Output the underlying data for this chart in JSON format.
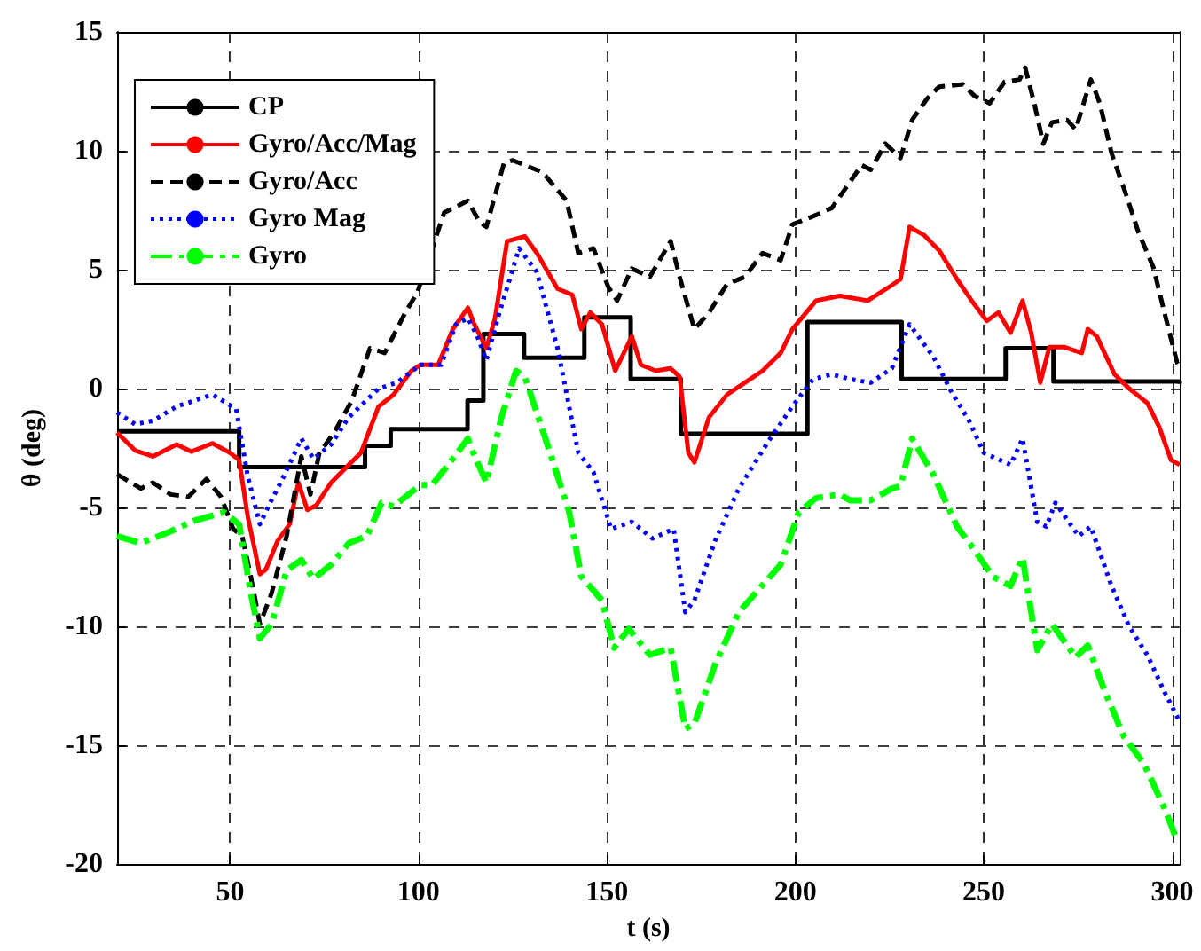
{
  "chart_data": {
    "type": "line",
    "xlabel": "t (s)",
    "ylabel": "θ (deg)",
    "xlim": [
      20,
      302
    ],
    "xticks": [
      50,
      100,
      150,
      200,
      250,
      300
    ],
    "ylim": [
      -20,
      15
    ],
    "yticks": [
      -20,
      -15,
      -10,
      -5,
      0,
      5,
      10,
      15
    ],
    "grid": true,
    "legend": "top left",
    "marker": "none",
    "series": [
      {
        "name": "CP",
        "type": "step",
        "color": "#000000",
        "line_style": "solid",
        "x": [
          20,
          52.4,
          85.8,
          92.6,
          113,
          117.2,
          128,
          144,
          156.3,
          169.6,
          203.2,
          228.2,
          255.8,
          268.5,
          302
        ],
        "values": [
          -1.8,
          -3.3,
          -2.4,
          -1.7,
          -0.5,
          2.3,
          1.3,
          3.0,
          0.4,
          -1.9,
          2.8,
          0.4,
          1.7,
          0.3,
          0.2
        ]
      },
      {
        "name": "Gyro/Acc/Mag",
        "color": "#ff0000",
        "line_style": "solid",
        "x": [
          20,
          24.8,
          29.5,
          35.8,
          39.7,
          45.3,
          50,
          52.4,
          54.7,
          57.9,
          59.5,
          62.6,
          65.8,
          68.1,
          70.5,
          72.9,
          76.8,
          81.5,
          84.7,
          89.4,
          93.4,
          98.1,
          100.5,
          105.2,
          109.1,
          113.1,
          114.8,
          118,
          120.3,
          123.5,
          128.2,
          131.4,
          136.9,
          140.8,
          143.2,
          145.6,
          148.7,
          152.2,
          156.6,
          159,
          163,
          166.9,
          169.3,
          171.6,
          173.2,
          177.1,
          181.9,
          186.6,
          191.3,
          196.1,
          199.2,
          205.5,
          211.8,
          219.2,
          225.6,
          227.9,
          230.3,
          234.2,
          238.2,
          242.9,
          246.8,
          250.8,
          253.9,
          257.1,
          260.3,
          262.6,
          265,
          267.4,
          271.3,
          276,
          277.6,
          280,
          284.7,
          288.6,
          293.4,
          296.5,
          299.7,
          302
        ],
        "values": [
          -1.85,
          -2.6,
          -2.85,
          -2.35,
          -2.65,
          -2.3,
          -2.7,
          -3.0,
          -5.4,
          -7.8,
          -7.6,
          -6.4,
          -5.7,
          -3.95,
          -5.1,
          -4.9,
          -3.95,
          -3.2,
          -2.7,
          -0.75,
          -0.25,
          0.75,
          1.0,
          1.0,
          2.5,
          3.4,
          2.7,
          1.7,
          2.96,
          6.2,
          6.4,
          5.7,
          4.2,
          3.95,
          2.5,
          3.2,
          2.7,
          0.75,
          2.2,
          1.0,
          0.75,
          0.85,
          0.5,
          -2.7,
          -3.1,
          -1.2,
          -0.25,
          0.25,
          0.75,
          1.5,
          2.5,
          3.7,
          3.9,
          3.7,
          4.35,
          4.6,
          6.8,
          6.45,
          5.8,
          4.6,
          3.7,
          2.85,
          3.2,
          2.35,
          3.7,
          2.35,
          0.25,
          1.75,
          1.75,
          1.5,
          2.5,
          2.2,
          0.6,
          0,
          -0.6,
          -1.6,
          -3.0,
          -3.2
        ]
      },
      {
        "name": "Gyro/Acc",
        "color": "#000000",
        "line_style": "dashed",
        "x": [
          20,
          26.3,
          29.5,
          34.2,
          38.9,
          43.7,
          47.6,
          50.8,
          53.2,
          55.5,
          57.9,
          61,
          65,
          68.9,
          71.3,
          73.7,
          77.6,
          82.3,
          87.1,
          91,
          96.5,
          99.7,
          106.8,
          113.1,
          116.2,
          118,
          122.7,
          125,
          128.2,
          132.9,
          139.3,
          142.4,
          146.4,
          150.3,
          152.7,
          156.6,
          161.4,
          166.9,
          169.3,
          173.2,
          177.1,
          181.9,
          186.6,
          191.3,
          196.1,
          199.2,
          205.5,
          209.7,
          217.6,
          220,
          223.9,
          227.9,
          231,
          235,
          238.2,
          244.5,
          247.6,
          251.6,
          255.5,
          259.5,
          261,
          263.4,
          265.8,
          268.1,
          272.1,
          274.4,
          278.4,
          280.8,
          283.9,
          287.9,
          291,
          295,
          298.1,
          301.3,
          302
        ],
        "values": [
          -3.6,
          -4.2,
          -3.95,
          -4.45,
          -4.55,
          -3.8,
          -4.55,
          -5.9,
          -6.2,
          -7.9,
          -9.9,
          -8.6,
          -6.2,
          -2.85,
          -4.45,
          -2.7,
          -1.85,
          -0.5,
          1.7,
          1.5,
          3.2,
          4.05,
          7.4,
          7.9,
          7.0,
          6.8,
          9.5,
          9.6,
          9.4,
          9.1,
          7.9,
          5.7,
          5.9,
          4.3,
          3.7,
          5.05,
          4.7,
          6.2,
          4.7,
          2.5,
          3.2,
          4.4,
          4.7,
          5.7,
          5.4,
          6.9,
          7.3,
          7.6,
          9.4,
          9.2,
          10.3,
          9.7,
          11.3,
          12.2,
          12.7,
          12.8,
          12.3,
          12.0,
          12.9,
          13.0,
          13.5,
          12.0,
          10.3,
          11.2,
          11.3,
          10.9,
          13.0,
          12.0,
          9.9,
          8.1,
          6.6,
          5.1,
          3.1,
          1.1,
          0.9
        ]
      },
      {
        "name": "Gyro Mag",
        "color": "#0000ff",
        "line_style": "dotted",
        "x": [
          20,
          24.8,
          29.5,
          35.8,
          45.3,
          51.6,
          54.7,
          57.9,
          60.3,
          64.2,
          68.9,
          72.1,
          76.8,
          81.5,
          89.4,
          94.2,
          100.5,
          106,
          109.9,
          113.1,
          115.6,
          118,
          121.1,
          126.7,
          131.4,
          136.9,
          142.4,
          146.4,
          151.1,
          156.6,
          162.1,
          167.7,
          170.8,
          173.2,
          178.7,
          185,
          192.9,
          199.2,
          204.7,
          209.7,
          214.5,
          220,
          225.6,
          230.3,
          236.6,
          241.3,
          246.1,
          250,
          257.1,
          260.3,
          264.2,
          266.6,
          269,
          275.2,
          278.4,
          283.9,
          288.6,
          293.4,
          298.1,
          302
        ],
        "values": [
          -1.0,
          -1.5,
          -1.35,
          -0.75,
          -0.25,
          -0.85,
          -3.7,
          -5.7,
          -4.9,
          -3.7,
          -2.1,
          -2.95,
          -2.35,
          -1.2,
          0,
          0.25,
          1.0,
          1.0,
          2.7,
          2.96,
          2.2,
          1.2,
          3.0,
          5.9,
          4.9,
          1.7,
          -2.7,
          -3.5,
          -5.9,
          -5.6,
          -6.3,
          -5.9,
          -9.4,
          -8.9,
          -6.4,
          -4.2,
          -2.2,
          -0.75,
          0.4,
          0.6,
          0.4,
          0.25,
          0.85,
          2.7,
          1.35,
          -0.1,
          -1.35,
          -2.7,
          -3.2,
          -2.1,
          -5.6,
          -5.8,
          -4.8,
          -6.2,
          -5.8,
          -8.3,
          -10.0,
          -11.2,
          -12.8,
          -14.0
        ]
      },
      {
        "name": "Gyro",
        "color": "#00ff00",
        "line_style": "dashdot",
        "x": [
          20,
          26.3,
          34.2,
          40.5,
          48.4,
          52.4,
          55.5,
          57.9,
          61,
          65,
          68.9,
          72.1,
          76.8,
          81.5,
          86.3,
          90.2,
          93.4,
          100.5,
          103.6,
          108.4,
          113.1,
          114,
          118,
          122,
          125.9,
          128.2,
          134.5,
          140,
          143.2,
          148.7,
          151.9,
          155.8,
          161.4,
          166.9,
          170.8,
          173.2,
          178.7,
          185,
          196.1,
          200.9,
          205.5,
          211.8,
          214.5,
          220,
          225.6,
          227.9,
          231,
          236.6,
          242.9,
          247.6,
          252.4,
          257.1,
          260.3,
          264.2,
          268.1,
          274.4,
          277.6,
          282.3,
          287.1,
          292.6,
          298.1,
          301.3
        ],
        "values": [
          -6.2,
          -6.5,
          -6.0,
          -5.55,
          -5.2,
          -5.7,
          -8.6,
          -10.5,
          -9.9,
          -7.65,
          -7.2,
          -8.0,
          -7.4,
          -6.5,
          -6.2,
          -4.8,
          -4.95,
          -4.05,
          -4.05,
          -3.1,
          -2.1,
          -2.5,
          -3.95,
          -1.2,
          0.75,
          0.5,
          -2.5,
          -5.2,
          -7.9,
          -8.9,
          -10.9,
          -10.1,
          -11.2,
          -10.9,
          -14.3,
          -14.1,
          -11.6,
          -9.4,
          -7.4,
          -5.2,
          -4.6,
          -4.45,
          -4.7,
          -4.7,
          -4.2,
          -4.1,
          -2.1,
          -3.6,
          -5.8,
          -6.8,
          -7.9,
          -8.3,
          -7.1,
          -11.0,
          -9.9,
          -11.3,
          -10.8,
          -12.8,
          -14.6,
          -15.8,
          -17.7,
          -19.0
        ]
      }
    ]
  }
}
